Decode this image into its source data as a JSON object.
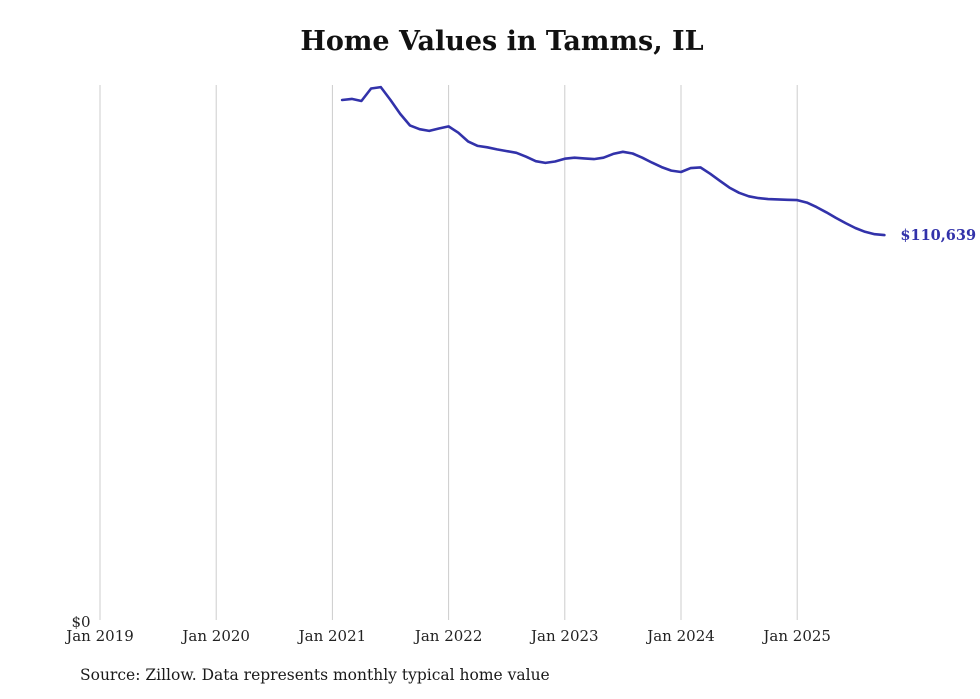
{
  "title": "Home Values in Tamms, IL",
  "source_note": "Source: Zillow. Data represents monthly typical home value",
  "end_label": "$110,639",
  "y_zero_label": "$0",
  "chart_data": {
    "type": "line",
    "title": "Home Values in Tamms, IL",
    "series_name": "Monthly typical home value",
    "line_color": "#3232aa",
    "grid_color": "#cccccc",
    "ylim": [
      0,
      153800
    ],
    "x_ticks": [
      "Jan 2019",
      "Jan 2020",
      "Jan 2021",
      "Jan 2022",
      "Jan 2023",
      "Jan 2024",
      "Jan 2025"
    ],
    "end_value": 110639,
    "months": [
      "2021-02",
      "2021-03",
      "2021-04",
      "2021-05",
      "2021-06",
      "2021-07",
      "2021-08",
      "2021-09",
      "2021-10",
      "2021-11",
      "2021-12",
      "2022-01",
      "2022-02",
      "2022-03",
      "2022-04",
      "2022-05",
      "2022-06",
      "2022-07",
      "2022-08",
      "2022-09",
      "2022-10",
      "2022-11",
      "2022-12",
      "2023-01",
      "2023-02",
      "2023-03",
      "2023-04",
      "2023-05",
      "2023-06",
      "2023-07",
      "2023-08",
      "2023-09",
      "2023-10",
      "2023-11",
      "2023-12",
      "2024-01",
      "2024-02",
      "2024-03",
      "2024-04",
      "2024-05",
      "2024-06",
      "2024-07",
      "2024-08",
      "2024-09",
      "2024-10",
      "2024-11",
      "2024-12",
      "2025-01",
      "2025-02",
      "2025-03",
      "2025-04",
      "2025-05",
      "2025-06",
      "2025-07",
      "2025-08",
      "2025-09",
      "2025-10"
    ],
    "values": [
      149500,
      149800,
      149200,
      152800,
      153200,
      149500,
      145500,
      142200,
      141100,
      140600,
      141300,
      141900,
      140100,
      137600,
      136300,
      135900,
      135300,
      134800,
      134300,
      133200,
      131900,
      131400,
      131800,
      132600,
      132900,
      132700,
      132500,
      132900,
      134000,
      134600,
      134100,
      132900,
      131500,
      130200,
      129200,
      128800,
      129900,
      130100,
      128300,
      126300,
      124300,
      122800,
      121800,
      121300,
      121000,
      120900,
      120800,
      120700,
      120000,
      118700,
      117200,
      115600,
      114100,
      112700,
      111600,
      110900,
      110639
    ]
  }
}
